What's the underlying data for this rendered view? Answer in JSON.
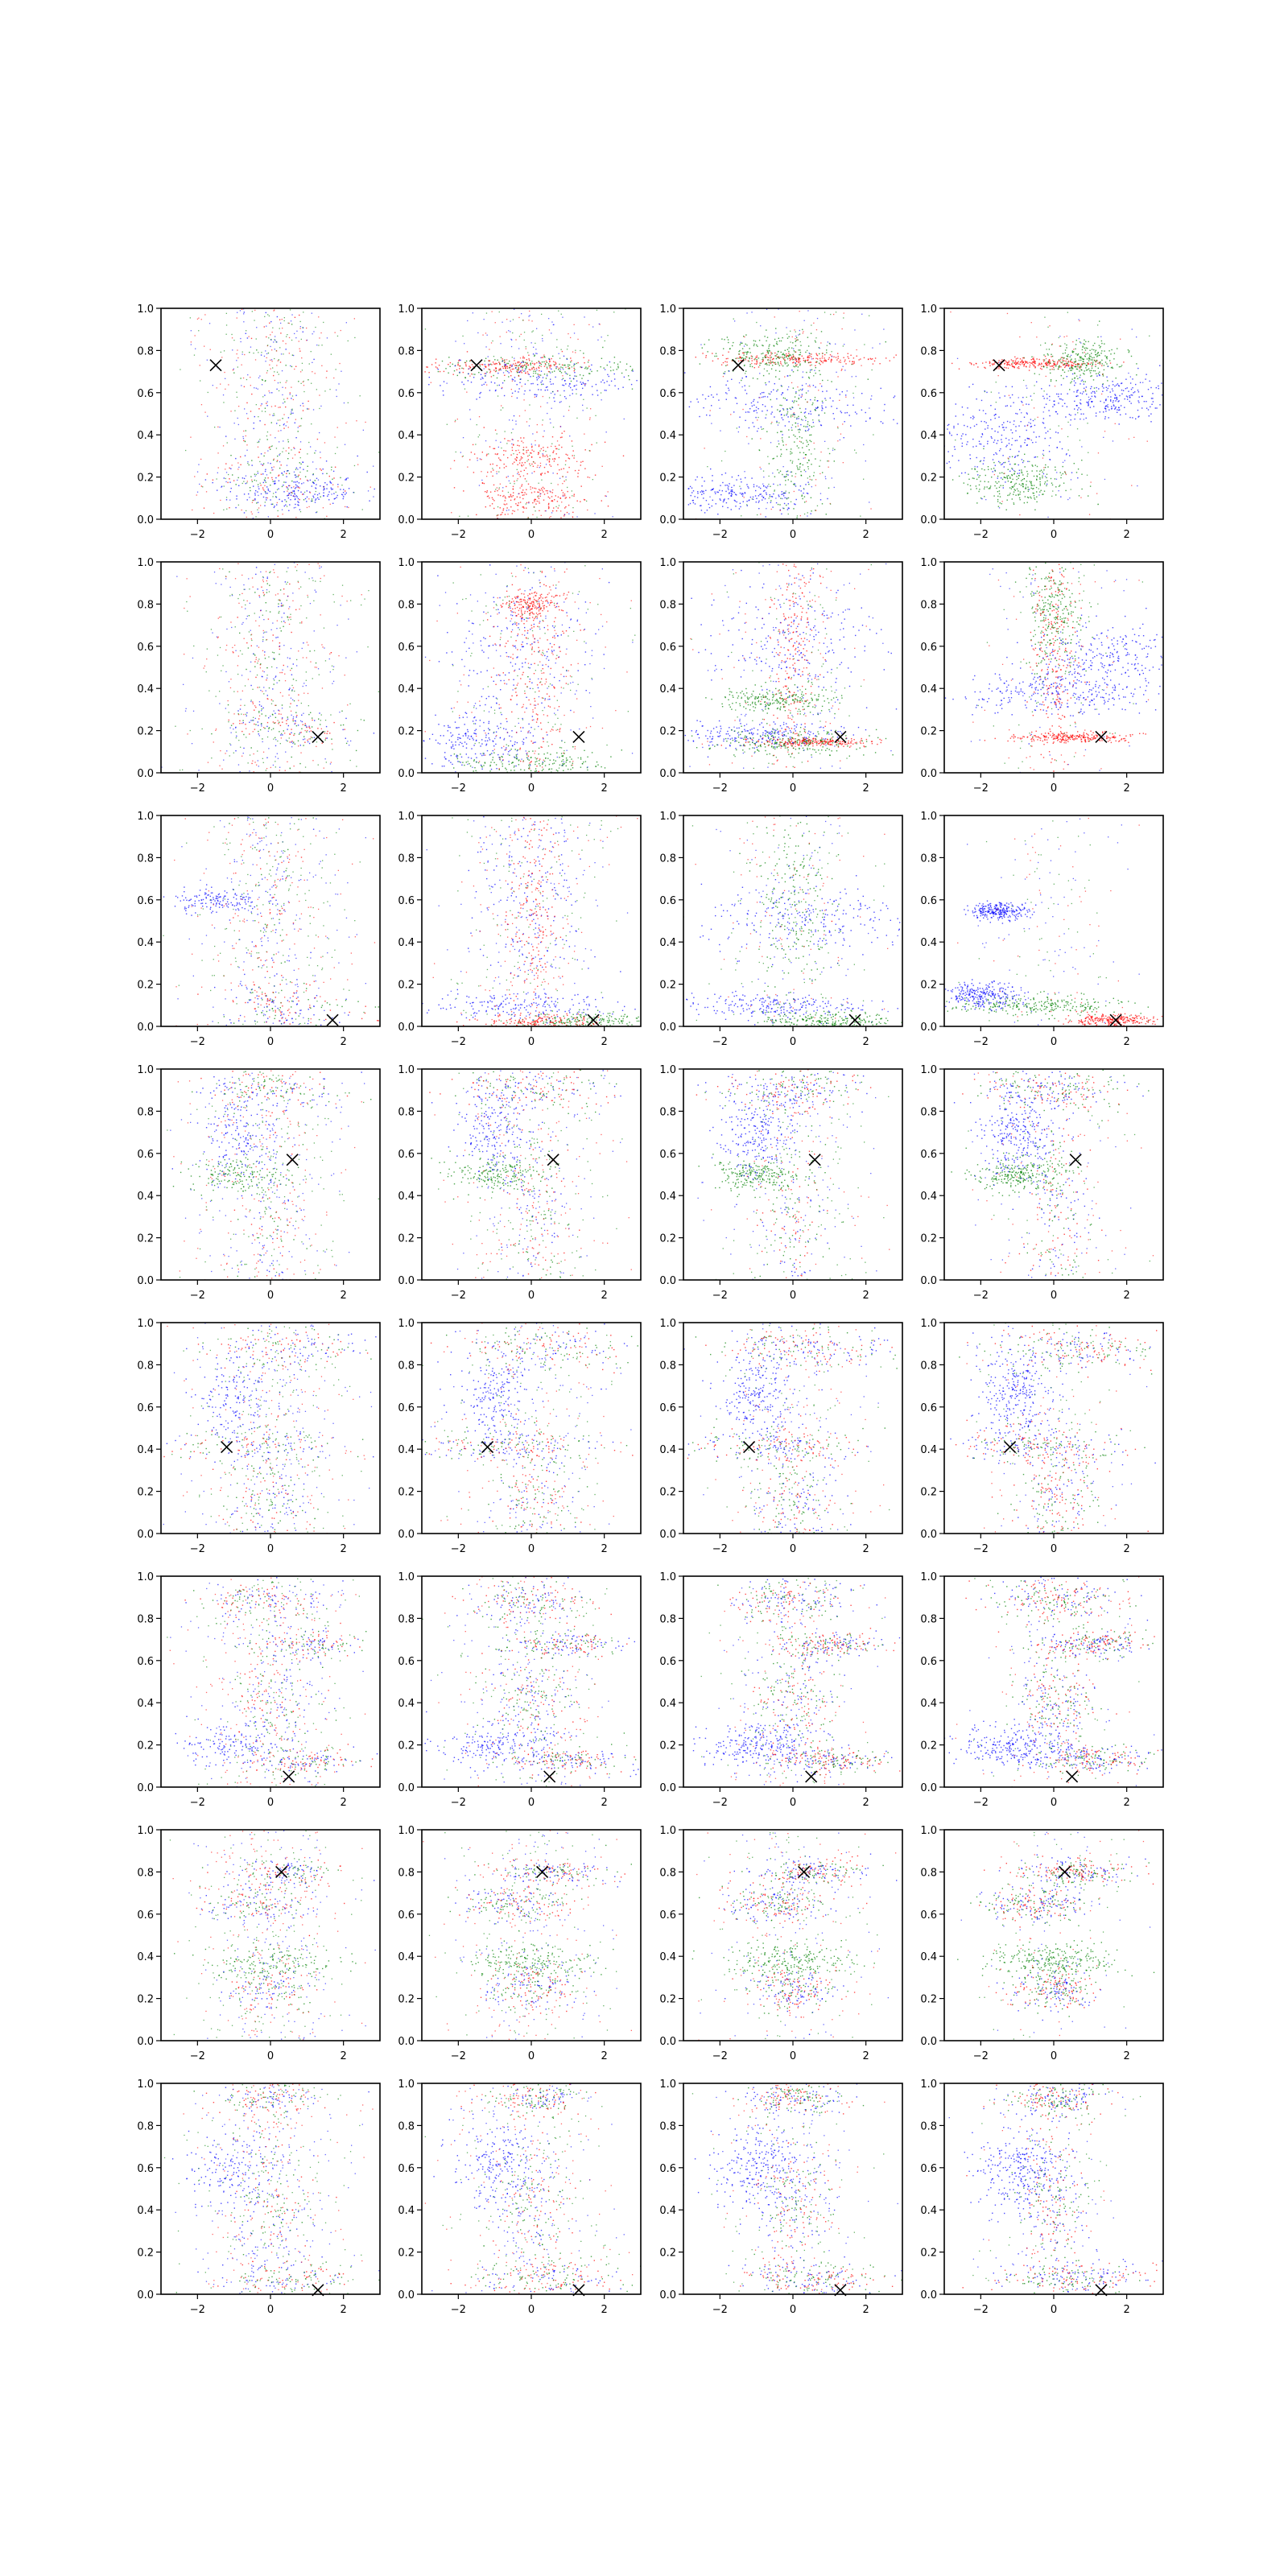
{
  "chart_data": {
    "type": "scatter",
    "grid": false,
    "layout": {
      "rows": 8,
      "cols": 4
    },
    "xlim": [
      -3,
      3
    ],
    "ylim": [
      0,
      1
    ],
    "x_ticks": [
      {
        "value": -2,
        "label": "−2"
      },
      {
        "value": 0,
        "label": "0"
      },
      {
        "value": 2,
        "label": "2"
      }
    ],
    "y_ticks": [
      {
        "value": 0.0,
        "label": "0.0"
      },
      {
        "value": 0.2,
        "label": "0.2"
      },
      {
        "value": 0.4,
        "label": "0.4"
      },
      {
        "value": 0.6,
        "label": "0.6"
      },
      {
        "value": 0.8,
        "label": "0.8"
      },
      {
        "value": 1.0,
        "label": "1.0"
      }
    ],
    "colors": {
      "blue": "#0000ff",
      "green": "#008000",
      "red": "#ff0000",
      "marker": "#000000"
    },
    "rows": [
      {
        "marker": [
          -1.5,
          0.73
        ],
        "mixture": [
          {
            "x": 0.0,
            "y": 0.58,
            "sx": 0.6,
            "sy": 0.35,
            "c": "mix"
          },
          {
            "x": 0.3,
            "y": 0.2,
            "sx": 1.0,
            "sy": 0.05,
            "c": "mix"
          },
          {
            "x": 0.8,
            "y": 0.12,
            "sx": 0.8,
            "sy": 0.04,
            "c": "blue"
          }
        ],
        "cols": [
          {
            "bands": []
          },
          {
            "bands": [
              {
                "x": 0.0,
                "y": 0.72,
                "sx": 1.6,
                "sy": 0.03,
                "c": "green"
              },
              {
                "x": -0.5,
                "y": 0.73,
                "sx": 1.0,
                "sy": 0.02,
                "c": "red"
              },
              {
                "x": 0.0,
                "y": 0.65,
                "sx": 1.4,
                "sy": 0.05,
                "c": "blue"
              },
              {
                "x": 0.0,
                "y": 0.3,
                "sx": 0.8,
                "sy": 0.05,
                "c": "red"
              },
              {
                "x": 0.0,
                "y": 0.1,
                "sx": 0.8,
                "sy": 0.05,
                "c": "red"
              }
            ]
          },
          {
            "bands": [
              {
                "x": 0.0,
                "y": 0.76,
                "sx": 1.2,
                "sy": 0.015,
                "c": "red"
              },
              {
                "x": -0.5,
                "y": 0.78,
                "sx": 0.8,
                "sy": 0.05,
                "c": "green"
              },
              {
                "x": 0.0,
                "y": 0.55,
                "sx": 1.6,
                "sy": 0.07,
                "c": "blue"
              },
              {
                "x": -1.5,
                "y": 0.12,
                "sx": 1.0,
                "sy": 0.04,
                "c": "blue"
              },
              {
                "x": 0.0,
                "y": 0.35,
                "sx": 0.4,
                "sy": 0.2,
                "c": "green"
              }
            ]
          },
          {
            "bands": [
              {
                "x": -0.5,
                "y": 0.74,
                "sx": 0.9,
                "sy": 0.012,
                "c": "red"
              },
              {
                "x": -1.5,
                "y": 0.4,
                "sx": 0.9,
                "sy": 0.1,
                "c": "blue"
              },
              {
                "x": -1.0,
                "y": 0.18,
                "sx": 0.7,
                "sy": 0.05,
                "c": "green"
              },
              {
                "x": 1.5,
                "y": 0.58,
                "sx": 1.0,
                "sy": 0.06,
                "c": "blue"
              },
              {
                "x": 0.8,
                "y": 0.75,
                "sx": 0.5,
                "sy": 0.05,
                "c": "green"
              }
            ]
          }
        ]
      },
      {
        "marker": [
          1.3,
          0.17
        ],
        "mixture": [
          {
            "x": 0.0,
            "y": 0.6,
            "sx": 0.5,
            "sy": 0.3,
            "c": "mix"
          },
          {
            "x": 0.5,
            "y": 0.22,
            "sx": 0.9,
            "sy": 0.05,
            "c": "mix"
          }
        ],
        "cols": [
          {
            "bands": []
          },
          {
            "bands": [
              {
                "x": -0.5,
                "y": 0.6,
                "sx": 1.0,
                "sy": 0.2,
                "c": "blue"
              },
              {
                "x": 0.0,
                "y": 0.5,
                "sx": 0.5,
                "sy": 0.3,
                "c": "red"
              },
              {
                "x": -1.5,
                "y": 0.15,
                "sx": 0.8,
                "sy": 0.06,
                "c": "blue"
              },
              {
                "x": 0.0,
                "y": 0.05,
                "sx": 1.0,
                "sy": 0.03,
                "c": "green"
              },
              {
                "x": 0.0,
                "y": 0.8,
                "sx": 0.4,
                "sy": 0.03,
                "c": "red"
              }
            ]
          },
          {
            "bands": [
              {
                "x": 0.0,
                "y": 0.6,
                "sx": 0.3,
                "sy": 0.3,
                "c": "red"
              },
              {
                "x": -1.0,
                "y": 0.18,
                "sx": 1.2,
                "sy": 0.03,
                "c": "blue"
              },
              {
                "x": 0.5,
                "y": 0.15,
                "sx": 0.8,
                "sy": 0.01,
                "c": "red"
              },
              {
                "x": -0.5,
                "y": 0.35,
                "sx": 0.8,
                "sy": 0.03,
                "c": "green"
              },
              {
                "x": 0.0,
                "y": 0.15,
                "sx": 1.0,
                "sy": 0.03,
                "c": "green"
              },
              {
                "x": 0.0,
                "y": 0.6,
                "sx": 1.2,
                "sy": 0.15,
                "c": "blue"
              }
            ]
          },
          {
            "bands": [
              {
                "x": 0.0,
                "y": 0.6,
                "sx": 0.3,
                "sy": 0.3,
                "c": "red"
              },
              {
                "x": 0.0,
                "y": 0.38,
                "sx": 1.2,
                "sy": 0.05,
                "c": "blue"
              },
              {
                "x": 0.5,
                "y": 0.17,
                "sx": 0.8,
                "sy": 0.012,
                "c": "red"
              },
              {
                "x": 0.0,
                "y": 0.75,
                "sx": 0.4,
                "sy": 0.15,
                "c": "green"
              },
              {
                "x": 1.5,
                "y": 0.55,
                "sx": 1.0,
                "sy": 0.08,
                "c": "blue"
              }
            ]
          }
        ]
      },
      {
        "marker": [
          1.7,
          0.03
        ],
        "mixture": [
          {
            "x": 0.0,
            "y": 0.55,
            "sx": 0.5,
            "sy": 0.35,
            "c": "mix"
          },
          {
            "x": -1.5,
            "y": 0.6,
            "sx": 0.6,
            "sy": 0.03,
            "c": "blue"
          },
          {
            "x": 0.5,
            "y": 0.1,
            "sx": 0.9,
            "sy": 0.06,
            "c": "mix"
          }
        ],
        "cols": [
          {
            "bands": []
          },
          {
            "bands": [
              {
                "x": -0.5,
                "y": 0.1,
                "sx": 1.5,
                "sy": 0.03,
                "c": "blue"
              },
              {
                "x": 1.5,
                "y": 0.03,
                "sx": 0.8,
                "sy": 0.02,
                "c": "green"
              },
              {
                "x": 0.3,
                "y": 0.02,
                "sx": 0.8,
                "sy": 0.02,
                "c": "red"
              },
              {
                "x": 0.0,
                "y": 0.6,
                "sx": 0.8,
                "sy": 0.25,
                "c": "blue"
              },
              {
                "x": 0.0,
                "y": 0.55,
                "sx": 0.3,
                "sy": 0.3,
                "c": "red"
              }
            ]
          },
          {
            "bands": [
              {
                "x": -0.8,
                "y": 0.1,
                "sx": 1.3,
                "sy": 0.03,
                "c": "blue"
              },
              {
                "x": 1.0,
                "y": 0.03,
                "sx": 0.9,
                "sy": 0.02,
                "c": "green"
              },
              {
                "x": 0.0,
                "y": 0.6,
                "sx": 0.5,
                "sy": 0.25,
                "c": "green"
              },
              {
                "x": 0.5,
                "y": 0.5,
                "sx": 1.5,
                "sy": 0.08,
                "c": "blue"
              }
            ]
          },
          {
            "bands": [
              {
                "x": -0.5,
                "y": 0.1,
                "sx": 1.2,
                "sy": 0.025,
                "c": "green"
              },
              {
                "x": -2.0,
                "y": 0.15,
                "sx": 0.5,
                "sy": 0.03,
                "c": "blue"
              },
              {
                "x": -1.5,
                "y": 0.55,
                "sx": 0.4,
                "sy": 0.02,
                "c": "blue"
              },
              {
                "x": 1.5,
                "y": 0.03,
                "sx": 0.6,
                "sy": 0.015,
                "c": "red"
              }
            ]
          }
        ]
      },
      {
        "marker": [
          0.6,
          0.57
        ],
        "mixture": [
          {
            "x": 0.0,
            "y": 0.9,
            "sx": 1.0,
            "sy": 0.05,
            "c": "mix"
          },
          {
            "x": -1.0,
            "y": 0.5,
            "sx": 0.6,
            "sy": 0.04,
            "c": "green"
          },
          {
            "x": 0.0,
            "y": 0.3,
            "sx": 0.5,
            "sy": 0.3,
            "c": "mix"
          },
          {
            "x": -1.0,
            "y": 0.7,
            "sx": 0.5,
            "sy": 0.1,
            "c": "blue"
          }
        ]
      },
      {
        "marker": [
          -1.2,
          0.41
        ],
        "mixture": [
          {
            "x": 0.5,
            "y": 0.88,
            "sx": 1.2,
            "sy": 0.05,
            "c": "mix"
          },
          {
            "x": -0.5,
            "y": 0.42,
            "sx": 1.2,
            "sy": 0.04,
            "c": "mix"
          },
          {
            "x": 0.0,
            "y": 0.15,
            "sx": 0.6,
            "sy": 0.15,
            "c": "mix"
          },
          {
            "x": -1.0,
            "y": 0.65,
            "sx": 0.5,
            "sy": 0.1,
            "c": "blue"
          }
        ]
      },
      {
        "marker": [
          0.5,
          0.05
        ],
        "mixture": [
          {
            "x": 0.0,
            "y": 0.88,
            "sx": 0.8,
            "sy": 0.05,
            "c": "mix"
          },
          {
            "x": 1.0,
            "y": 0.68,
            "sx": 0.8,
            "sy": 0.03,
            "c": "mix"
          },
          {
            "x": -1.0,
            "y": 0.2,
            "sx": 0.8,
            "sy": 0.05,
            "c": "blue"
          },
          {
            "x": 1.0,
            "y": 0.13,
            "sx": 0.8,
            "sy": 0.03,
            "c": "mix"
          },
          {
            "x": 0.0,
            "y": 0.4,
            "sx": 0.6,
            "sy": 0.12,
            "c": "mix"
          }
        ]
      },
      {
        "marker": [
          0.3,
          0.8
        ],
        "mixture": [
          {
            "x": 0.5,
            "y": 0.8,
            "sx": 0.8,
            "sy": 0.03,
            "c": "mix"
          },
          {
            "x": -0.5,
            "y": 0.65,
            "sx": 0.7,
            "sy": 0.04,
            "c": "mix"
          },
          {
            "x": 0.0,
            "y": 0.38,
            "sx": 0.9,
            "sy": 0.04,
            "c": "green"
          },
          {
            "x": 0.0,
            "y": 0.25,
            "sx": 0.6,
            "sy": 0.05,
            "c": "mix"
          }
        ]
      },
      {
        "marker": [
          1.3,
          0.02
        ],
        "mixture": [
          {
            "x": 0.0,
            "y": 0.93,
            "sx": 0.7,
            "sy": 0.04,
            "c": "mix"
          },
          {
            "x": -1.0,
            "y": 0.6,
            "sx": 0.6,
            "sy": 0.1,
            "c": "blue"
          },
          {
            "x": 0.0,
            "y": 0.45,
            "sx": 0.5,
            "sy": 0.15,
            "c": "mix"
          },
          {
            "x": 0.5,
            "y": 0.08,
            "sx": 1.0,
            "sy": 0.04,
            "c": "mix"
          }
        ]
      }
    ]
  }
}
